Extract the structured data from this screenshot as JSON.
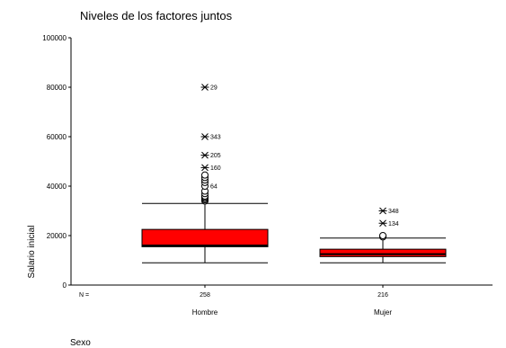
{
  "chart_data": {
    "type": "boxplot",
    "title": "Niveles de los factores juntos",
    "ylabel": "Salario inicial",
    "xlabel": "Sexo",
    "ylim": [
      0,
      100000
    ],
    "yticks": [
      0,
      20000,
      40000,
      60000,
      80000,
      100000
    ],
    "n_label": "N =",
    "categories": [
      "Hombre",
      "Mujer"
    ],
    "n": [
      "258",
      "216"
    ],
    "box_color": "#ff0000",
    "boxes": [
      {
        "category": "Hombre",
        "min": 9000,
        "q1": 15500,
        "median": 16000,
        "q3": 22500,
        "max": 33000,
        "outliers": [
          {
            "value": 34000,
            "label": "",
            "kind": "circle"
          },
          {
            "value": 34500,
            "label": "",
            "kind": "circle"
          },
          {
            "value": 35000,
            "label": "",
            "kind": "circle"
          },
          {
            "value": 35500,
            "label": "",
            "kind": "circle"
          },
          {
            "value": 36000,
            "label": "",
            "kind": "circle"
          },
          {
            "value": 37000,
            "label": "",
            "kind": "circle"
          },
          {
            "value": 38000,
            "label": "",
            "kind": "circle"
          },
          {
            "value": 40000,
            "label": "64",
            "kind": "circle"
          },
          {
            "value": 41500,
            "label": "",
            "kind": "circle"
          },
          {
            "value": 42500,
            "label": "",
            "kind": "circle"
          },
          {
            "value": 43500,
            "label": "",
            "kind": "circle"
          },
          {
            "value": 44500,
            "label": "",
            "kind": "circle"
          },
          {
            "value": 47500,
            "label": "160",
            "kind": "star"
          },
          {
            "value": 52500,
            "label": "205",
            "kind": "star"
          },
          {
            "value": 60000,
            "label": "343",
            "kind": "star"
          },
          {
            "value": 80000,
            "label": "29",
            "kind": "star"
          }
        ]
      },
      {
        "category": "Mujer",
        "min": 9000,
        "q1": 11500,
        "median": 12500,
        "q3": 14500,
        "max": 19000,
        "outliers": [
          {
            "value": 19500,
            "label": "",
            "kind": "circle"
          },
          {
            "value": 20000,
            "label": "",
            "kind": "circle"
          },
          {
            "value": 25000,
            "label": "134",
            "kind": "star"
          },
          {
            "value": 30000,
            "label": "348",
            "kind": "star"
          }
        ]
      }
    ]
  }
}
